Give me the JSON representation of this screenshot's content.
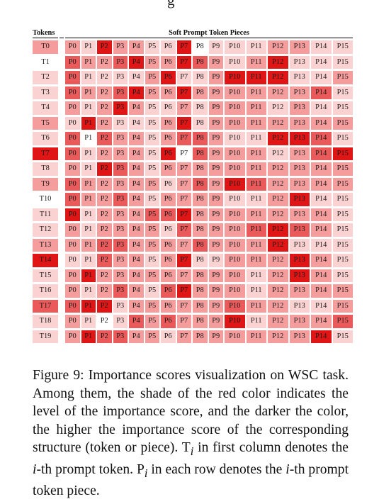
{
  "header_fragment": "g",
  "table": {
    "col_header_tokens": "Tokens",
    "col_header_pieces": "Soft Prompt Token Pieces",
    "pieces": [
      "P0",
      "P1",
      "P2",
      "P3",
      "P4",
      "P5",
      "P6",
      "P7",
      "P8",
      "P9",
      "P10",
      "P11",
      "P12",
      "P13",
      "P14",
      "P15"
    ],
    "rows": [
      {
        "token": "T0",
        "token_level": 2,
        "levels": [
          2,
          1,
          4,
          2,
          2,
          1,
          1,
          4,
          0,
          1,
          1,
          1,
          2,
          2,
          1,
          1
        ]
      },
      {
        "token": "T1",
        "token_level": 0,
        "levels": [
          3,
          2,
          2,
          3,
          4,
          2,
          2,
          4,
          3,
          2,
          1,
          2,
          4,
          1,
          1,
          1
        ]
      },
      {
        "token": "T2",
        "token_level": 1,
        "levels": [
          3,
          1,
          1,
          1,
          1,
          2,
          4,
          1,
          1,
          2,
          4,
          4,
          4,
          1,
          1,
          2
        ]
      },
      {
        "token": "T3",
        "token_level": 1,
        "levels": [
          3,
          2,
          2,
          3,
          4,
          2,
          2,
          4,
          2,
          2,
          2,
          2,
          2,
          2,
          3,
          1
        ]
      },
      {
        "token": "T4",
        "token_level": 1,
        "levels": [
          2,
          1,
          2,
          4,
          2,
          1,
          1,
          2,
          1,
          2,
          2,
          2,
          1,
          2,
          1,
          1
        ]
      },
      {
        "token": "T5",
        "token_level": 2,
        "levels": [
          1,
          4,
          2,
          1,
          1,
          1,
          2,
          4,
          1,
          2,
          2,
          2,
          2,
          2,
          2,
          2
        ]
      },
      {
        "token": "T6",
        "token_level": 1,
        "levels": [
          3,
          0,
          3,
          2,
          2,
          1,
          2,
          3,
          3,
          2,
          1,
          1,
          4,
          4,
          3,
          1
        ]
      },
      {
        "token": "T7",
        "token_level": 4,
        "levels": [
          3,
          1,
          2,
          2,
          2,
          1,
          4,
          0,
          3,
          2,
          2,
          2,
          1,
          2,
          3,
          4
        ]
      },
      {
        "token": "T8",
        "token_level": 1,
        "levels": [
          2,
          1,
          4,
          3,
          2,
          1,
          2,
          2,
          2,
          2,
          2,
          2,
          2,
          2,
          2,
          2
        ]
      },
      {
        "token": "T9",
        "token_level": 2,
        "levels": [
          3,
          2,
          2,
          2,
          2,
          2,
          1,
          2,
          3,
          2,
          4,
          3,
          2,
          2,
          2,
          2
        ]
      },
      {
        "token": "T10",
        "token_level": 0,
        "levels": [
          3,
          2,
          2,
          3,
          2,
          1,
          2,
          2,
          2,
          2,
          1,
          1,
          2,
          4,
          1,
          1
        ]
      },
      {
        "token": "T11",
        "token_level": 1,
        "levels": [
          4,
          1,
          2,
          2,
          2,
          3,
          3,
          4,
          2,
          2,
          2,
          2,
          2,
          2,
          2,
          1
        ]
      },
      {
        "token": "T12",
        "token_level": 1,
        "levels": [
          2,
          1,
          2,
          2,
          2,
          2,
          1,
          3,
          2,
          2,
          2,
          3,
          4,
          3,
          2,
          1
        ]
      },
      {
        "token": "T13",
        "token_level": 2,
        "levels": [
          2,
          2,
          3,
          3,
          2,
          2,
          2,
          2,
          3,
          2,
          2,
          2,
          4,
          1,
          1,
          1
        ]
      },
      {
        "token": "T14",
        "token_level": 4,
        "levels": [
          1,
          1,
          3,
          2,
          2,
          1,
          2,
          4,
          1,
          1,
          2,
          2,
          2,
          4,
          2,
          1
        ]
      },
      {
        "token": "T15",
        "token_level": 1,
        "levels": [
          2,
          4,
          2,
          2,
          2,
          2,
          2,
          2,
          2,
          2,
          2,
          1,
          2,
          4,
          2,
          1
        ]
      },
      {
        "token": "T16",
        "token_level": 1,
        "levels": [
          2,
          1,
          2,
          3,
          2,
          1,
          3,
          4,
          2,
          2,
          2,
          1,
          2,
          2,
          2,
          2
        ]
      },
      {
        "token": "T17",
        "token_level": 3,
        "levels": [
          3,
          4,
          4,
          1,
          2,
          2,
          2,
          2,
          2,
          2,
          3,
          2,
          2,
          1,
          1,
          2
        ]
      },
      {
        "token": "T18",
        "token_level": 1,
        "levels": [
          2,
          1,
          0,
          1,
          3,
          2,
          3,
          2,
          2,
          2,
          4,
          1,
          2,
          2,
          2,
          3
        ]
      },
      {
        "token": "T19",
        "token_level": 1,
        "levels": [
          2,
          4,
          3,
          3,
          2,
          2,
          1,
          2,
          2,
          2,
          2,
          2,
          2,
          2,
          4,
          1
        ]
      }
    ],
    "level_colors": [
      "#ffffff",
      "#fbd2d2",
      "#f59c9c",
      "#eb5a5a",
      "#e01515"
    ]
  },
  "caption": {
    "figure_label": "Figure 9:",
    "text_1": "Importance scores visualization on WSC task. Among them, the shade of the red color indicates the level of the importance score, and the darker the color, the higher the importance score of the corresponding structure (token or piece).",
    "text_2": "T",
    "sub_i": "i",
    "text_3": " in first column denotes the ",
    "italic_i": "i",
    "text_4": "-th prompt token. P",
    "sub_i2": "i",
    "text_5": " in each row denotes the ",
    "italic_i2": "i",
    "text_6": "-th prompt token piece."
  }
}
